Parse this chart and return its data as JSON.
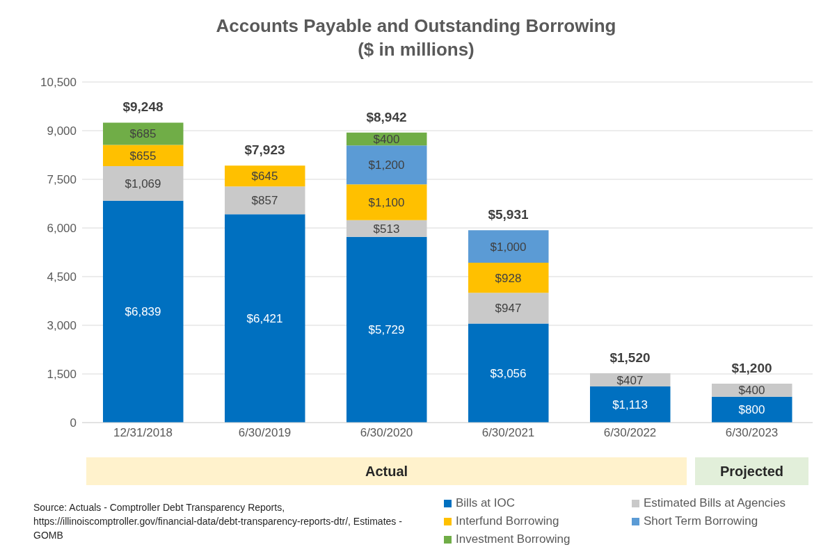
{
  "chart_data": {
    "type": "bar",
    "title": "Accounts Payable and Outstanding Borrowing",
    "subtitle": "($ in millions)",
    "stacked": true,
    "categories": [
      "12/31/2018",
      "6/30/2019",
      "6/30/2020",
      "6/30/2021",
      "6/30/2022",
      "6/30/2023"
    ],
    "series": [
      {
        "name": "Bills at IOC",
        "color": "#0070c0",
        "values": [
          6839,
          6421,
          5729,
          3056,
          1113,
          800
        ],
        "value_labels": [
          "$6,839",
          "$6,421",
          "$5,729",
          "$3,056",
          "$1,113",
          "$800"
        ]
      },
      {
        "name": "Estimated Bills at Agencies",
        "color": "#c9c9c9",
        "values": [
          1069,
          857,
          513,
          947,
          407,
          400
        ],
        "value_labels": [
          "$1,069",
          "$857",
          "$513",
          "$947",
          "$407",
          "$400"
        ]
      },
      {
        "name": "Interfund Borrowing",
        "color": "#ffc000",
        "values": [
          655,
          645,
          1100,
          928,
          null,
          null
        ],
        "value_labels": [
          "$655",
          "$645",
          "$1,100",
          "$928",
          null,
          null
        ]
      },
      {
        "name": "Short Term Borrowing",
        "color": "#5b9bd5",
        "values": [
          null,
          null,
          1200,
          1000,
          null,
          null
        ],
        "value_labels": [
          null,
          null,
          "$1,200",
          "$1,000",
          null,
          null
        ]
      },
      {
        "name": "Investment Borrowing",
        "color": "#70ad47",
        "values": [
          685,
          null,
          400,
          null,
          null,
          null
        ],
        "value_labels": [
          "$685",
          null,
          "$400",
          null,
          null,
          null
        ]
      }
    ],
    "totals": [
      "$9,248",
      "$7,923",
      "$8,942",
      "$5,931",
      "$1,520",
      "$1,200"
    ],
    "ylim": [
      0,
      10500
    ],
    "yticks": [
      {
        "value": 0,
        "label": "0"
      },
      {
        "value": 1500,
        "label": "1,500"
      },
      {
        "value": 3000,
        "label": "3,000"
      },
      {
        "value": 4500,
        "label": "4,500"
      },
      {
        "value": 6000,
        "label": "6,000"
      },
      {
        "value": 7500,
        "label": "7,500"
      },
      {
        "value": 9000,
        "label": "9,000"
      },
      {
        "value": 10500,
        "label": "10,500"
      }
    ],
    "grid": "y",
    "legend": "bottom right",
    "annotations": [
      "Actual",
      "Projected",
      "Source: Actuals - Comptroller Debt Transparency Reports, https://illinoiscomptroller.gov/financial-data/debt-transparency-reports-dtr/, Estimates - GOMB"
    ]
  }
}
